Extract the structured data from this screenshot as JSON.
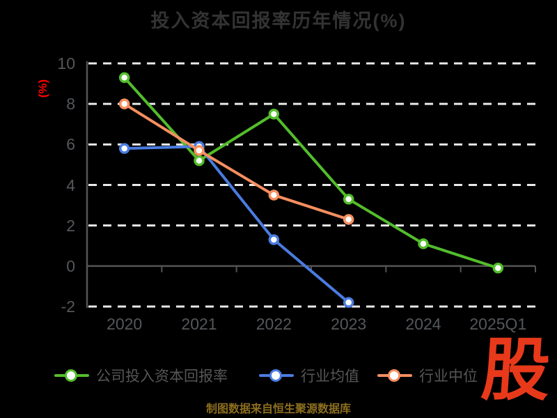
{
  "page": {
    "background": "#000000"
  },
  "chart_data": {
    "type": "line",
    "title": "投入资本回报率历年情况(%)",
    "ylabel": "(%)",
    "xlabel": "",
    "categories": [
      "2020",
      "2021",
      "2022",
      "2023",
      "2024",
      "2025Q1"
    ],
    "series": [
      {
        "name": "公司投入资本回报率",
        "color": "#53bd2c",
        "values": [
          9.3,
          5.2,
          7.5,
          3.3,
          1.1,
          -0.1
        ]
      },
      {
        "name": "行业均值",
        "color": "#4a7ce0",
        "values": [
          5.8,
          5.9,
          1.3,
          -1.8,
          null,
          null
        ]
      },
      {
        "name": "行业中位",
        "color": "#f68f5f",
        "values": [
          8.0,
          5.7,
          3.5,
          2.3,
          null,
          null
        ]
      }
    ],
    "ylim": [
      -2,
      10
    ],
    "yticks": [
      10,
      8,
      6,
      4,
      2,
      0,
      -2
    ],
    "grid_dashed_at": [
      10,
      8,
      6,
      4,
      2,
      -2
    ],
    "zero_axis_at": 0,
    "grid": "horizontal dashed, zero line solid with ticks",
    "legend_position": "bottom",
    "marker_style": "hollow circle, white fill"
  },
  "colors": {
    "background": "#000000",
    "title": "#333333",
    "axis_text": "#54575b",
    "grid_dash": "#e9e9e9",
    "axis_line": "#555555",
    "ylabel_red": "#ff0000",
    "legend_text": "#565656",
    "footer_text": "#8c6e1e",
    "watermark_red": "#e8391b"
  },
  "footer": {
    "source_note": "制图数据来自恒生聚源数据库"
  },
  "watermark": {
    "text": "股"
  }
}
